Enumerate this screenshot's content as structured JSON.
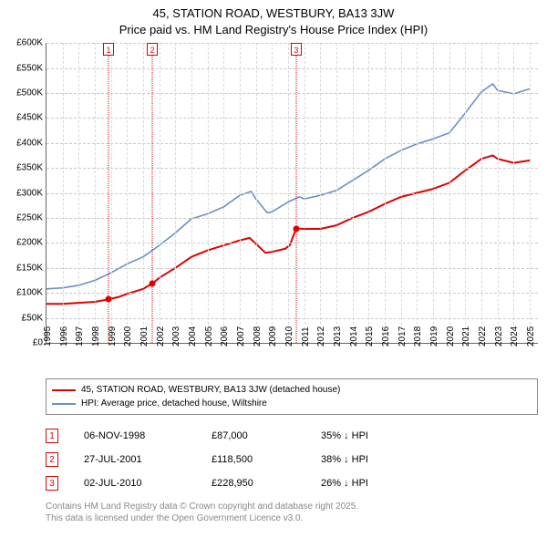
{
  "title": {
    "line1": "45, STATION ROAD, WESTBURY, BA13 3JW",
    "line2": "Price paid vs. HM Land Registry's House Price Index (HPI)"
  },
  "chart": {
    "type": "line",
    "background_color": "#ffffff",
    "grid_color": "#c8c8c8",
    "axis_color": "#666666",
    "font_size_ticks": 10,
    "x": {
      "min": 1995,
      "max": 2025.5,
      "ticks": [
        1995,
        1996,
        1997,
        1998,
        1999,
        2000,
        2001,
        2002,
        2003,
        2004,
        2005,
        2006,
        2007,
        2008,
        2009,
        2010,
        2011,
        2012,
        2013,
        2014,
        2015,
        2016,
        2017,
        2018,
        2019,
        2020,
        2021,
        2022,
        2023,
        2024,
        2025
      ]
    },
    "y": {
      "min": 0,
      "max": 600000,
      "ticks": [
        0,
        50000,
        100000,
        150000,
        200000,
        250000,
        300000,
        350000,
        400000,
        450000,
        500000,
        550000,
        600000
      ],
      "tick_labels": [
        "£0",
        "£50K",
        "£100K",
        "£150K",
        "£200K",
        "£250K",
        "£300K",
        "£350K",
        "£400K",
        "£450K",
        "£500K",
        "£550K",
        "£600K"
      ]
    },
    "series": [
      {
        "id": "price_paid",
        "label": "45, STATION ROAD, WESTBURY, BA13 3JW (detached house)",
        "color": "#e00000",
        "line_width": 2,
        "points": [
          [
            1995,
            78000
          ],
          [
            1996,
            78000
          ],
          [
            1997,
            80000
          ],
          [
            1998,
            82000
          ],
          [
            1998.85,
            87000
          ],
          [
            1999.5,
            92000
          ],
          [
            2000,
            98000
          ],
          [
            2001,
            108000
          ],
          [
            2001.57,
            118500
          ],
          [
            2002,
            130000
          ],
          [
            2003,
            150000
          ],
          [
            2004,
            172000
          ],
          [
            2005,
            185000
          ],
          [
            2006,
            195000
          ],
          [
            2007,
            205000
          ],
          [
            2007.6,
            210000
          ],
          [
            2008,
            198000
          ],
          [
            2008.6,
            180000
          ],
          [
            2009,
            182000
          ],
          [
            2009.8,
            188000
          ],
          [
            2010.1,
            195000
          ],
          [
            2010.5,
            228950
          ],
          [
            2011,
            228000
          ],
          [
            2012,
            228000
          ],
          [
            2013,
            235000
          ],
          [
            2014,
            250000
          ],
          [
            2015,
            262000
          ],
          [
            2016,
            278000
          ],
          [
            2017,
            292000
          ],
          [
            2018,
            300000
          ],
          [
            2019,
            308000
          ],
          [
            2020,
            320000
          ],
          [
            2021,
            345000
          ],
          [
            2022,
            368000
          ],
          [
            2022.7,
            375000
          ],
          [
            2023,
            368000
          ],
          [
            2024,
            360000
          ],
          [
            2025,
            365000
          ]
        ]
      },
      {
        "id": "hpi",
        "label": "HPI: Average price, detached house, Wiltshire",
        "color": "#6b8fc9",
        "line_width": 1.6,
        "points": [
          [
            1995,
            108000
          ],
          [
            1996,
            110000
          ],
          [
            1997,
            115000
          ],
          [
            1998,
            125000
          ],
          [
            1999,
            140000
          ],
          [
            2000,
            158000
          ],
          [
            2001,
            172000
          ],
          [
            2002,
            195000
          ],
          [
            2003,
            220000
          ],
          [
            2004,
            248000
          ],
          [
            2005,
            258000
          ],
          [
            2006,
            272000
          ],
          [
            2007,
            295000
          ],
          [
            2007.7,
            303000
          ],
          [
            2008,
            288000
          ],
          [
            2008.7,
            260000
          ],
          [
            2009,
            262000
          ],
          [
            2010,
            282000
          ],
          [
            2010.7,
            292000
          ],
          [
            2011,
            288000
          ],
          [
            2012,
            295000
          ],
          [
            2013,
            305000
          ],
          [
            2014,
            325000
          ],
          [
            2015,
            345000
          ],
          [
            2016,
            368000
          ],
          [
            2017,
            385000
          ],
          [
            2018,
            398000
          ],
          [
            2019,
            408000
          ],
          [
            2020,
            420000
          ],
          [
            2021,
            460000
          ],
          [
            2022,
            502000
          ],
          [
            2022.7,
            518000
          ],
          [
            2023,
            505000
          ],
          [
            2024,
            498000
          ],
          [
            2025,
            508000
          ]
        ]
      }
    ],
    "sale_markers": [
      {
        "n": "1",
        "x": 1998.85,
        "y": 87000
      },
      {
        "n": "2",
        "x": 2001.57,
        "y": 118500
      },
      {
        "n": "3",
        "x": 2010.5,
        "y": 228950
      }
    ],
    "marker_color": "#e00000"
  },
  "legend": {
    "rows": [
      {
        "color": "#e00000",
        "label": "45, STATION ROAD, WESTBURY, BA13 3JW (detached house)"
      },
      {
        "color": "#6b8fc9",
        "label": "HPI: Average price, detached house, Wiltshire"
      }
    ]
  },
  "sales": [
    {
      "n": "1",
      "date": "06-NOV-1998",
      "price": "£87,000",
      "delta": "35% ↓ HPI"
    },
    {
      "n": "2",
      "date": "27-JUL-2001",
      "price": "£118,500",
      "delta": "38% ↓ HPI"
    },
    {
      "n": "3",
      "date": "02-JUL-2010",
      "price": "£228,950",
      "delta": "26% ↓ HPI"
    }
  ],
  "footer": {
    "line1": "Contains HM Land Registry data © Crown copyright and database right 2025.",
    "line2": "This data is licensed under the Open Government Licence v3.0."
  }
}
